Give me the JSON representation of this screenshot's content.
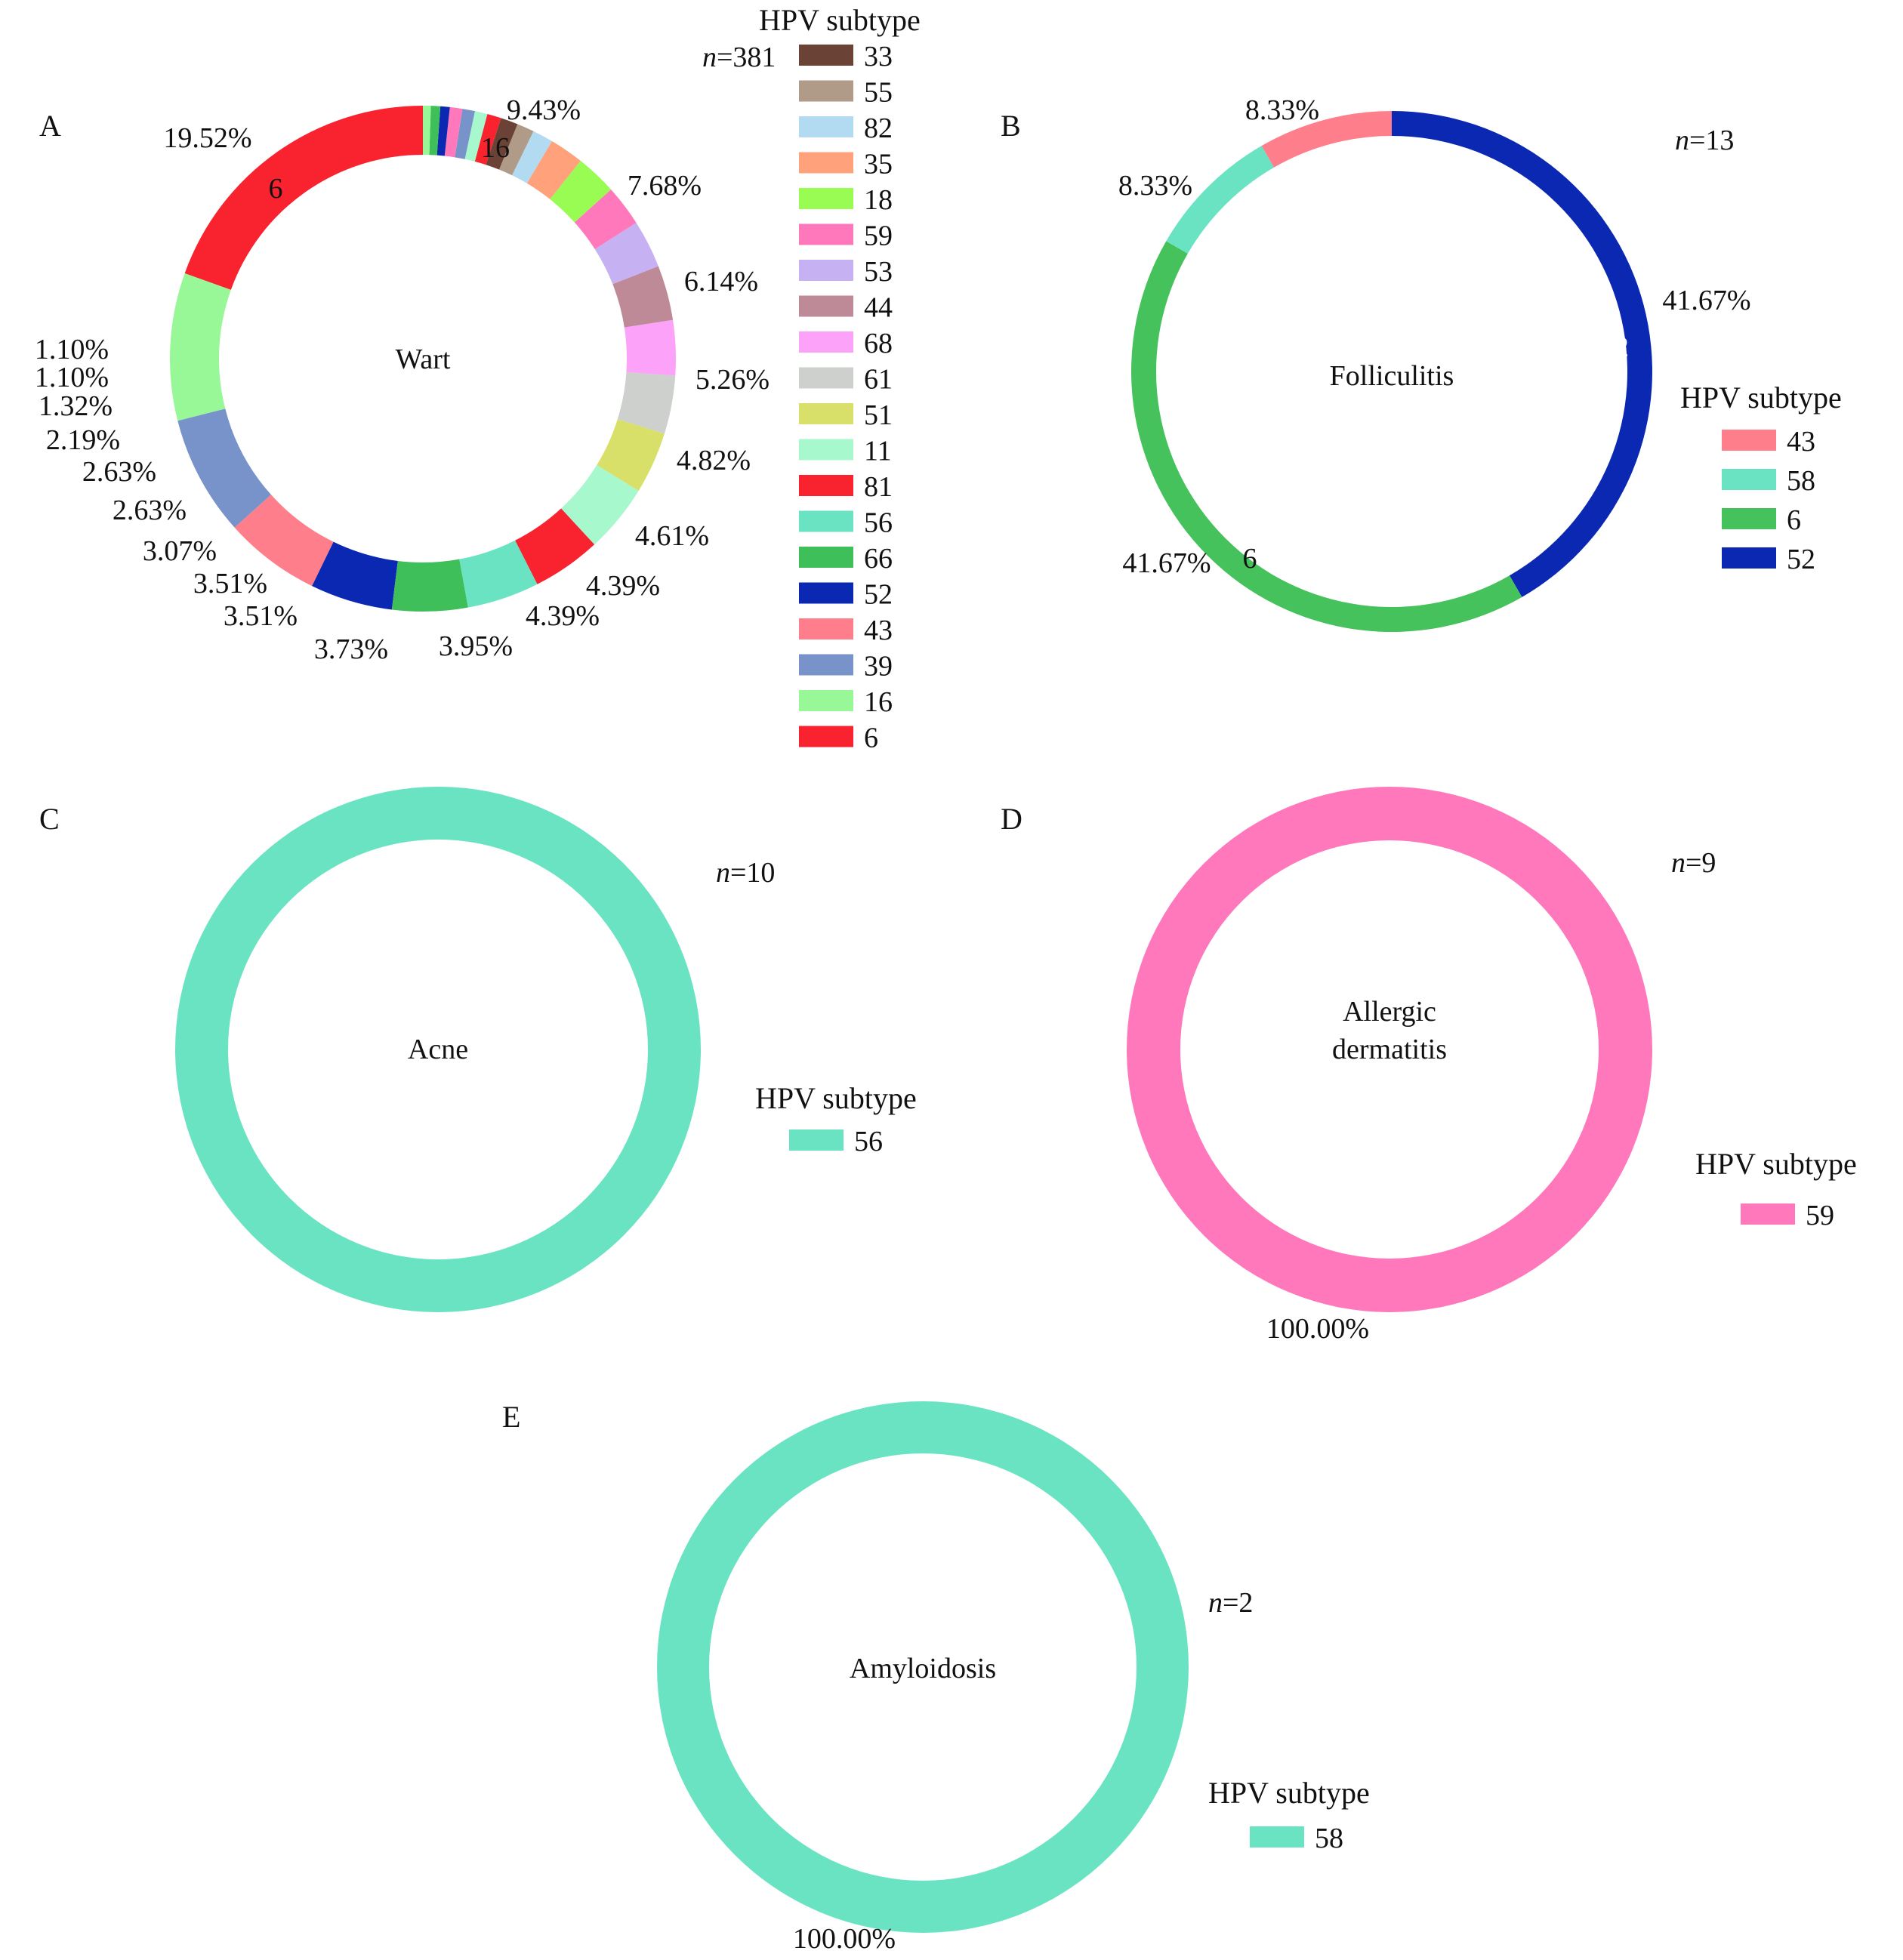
{
  "colors": {
    "6": "#F8232F",
    "16": "#98F898",
    "39": "#7893CA",
    "43": "#FF7E8C",
    "52": "#0A28B2",
    "66": "#3FBF5A",
    "56": "#69E3C2",
    "81": "#F8232F",
    "11": "#A8F8CE",
    "51": "#D8E06A",
    "61": "#CDD0CC",
    "68": "#FCA2F9",
    "44": "#BF8A98",
    "53": "#C6B1F2",
    "59": "#FF78BC",
    "18": "#99FC52",
    "35": "#FFA27C",
    "82": "#B2DBF2",
    "55": "#B09A88",
    "33": "#6A4236",
    "58": "#69E3C2",
    "6b": "#46C25C"
  },
  "chart_data": [
    {
      "panel": "A",
      "type": "pie",
      "center_label": "Wart",
      "n_label": "n",
      "n_value": "=381",
      "legend_title": "HPV subtype",
      "legend": [
        "33",
        "55",
        "82",
        "35",
        "18",
        "59",
        "53",
        "44",
        "68",
        "61",
        "51",
        "11",
        "81",
        "56",
        "66",
        "52",
        "43",
        "39",
        "16",
        "6"
      ],
      "slices": [
        {
          "subtype": "6",
          "value": 19.52,
          "label": "19.52%",
          "inner_label": "6"
        },
        {
          "subtype": "16",
          "value": 9.43,
          "label": "9.43%",
          "inner_label": "16"
        },
        {
          "subtype": "39",
          "value": 7.68,
          "label": "7.68%"
        },
        {
          "subtype": "43",
          "value": 6.14,
          "label": "6.14%"
        },
        {
          "subtype": "52",
          "value": 5.26,
          "label": "5.26%"
        },
        {
          "subtype": "66",
          "value": 4.82,
          "label": "4.82%"
        },
        {
          "subtype": "56",
          "value": 4.61,
          "label": "4.61%"
        },
        {
          "subtype": "81",
          "value": 4.39,
          "label": "4.39%"
        },
        {
          "subtype": "11",
          "value": 4.39,
          "label": "4.39%"
        },
        {
          "subtype": "51",
          "value": 3.95,
          "label": "3.95%"
        },
        {
          "subtype": "61",
          "value": 3.73,
          "label": "3.73%"
        },
        {
          "subtype": "68",
          "value": 3.51,
          "label": "3.51%"
        },
        {
          "subtype": "44",
          "value": 3.51,
          "label": "3.51%"
        },
        {
          "subtype": "53",
          "value": 3.07,
          "label": "3.07%"
        },
        {
          "subtype": "59",
          "value": 2.63,
          "label": "2.63%"
        },
        {
          "subtype": "18",
          "value": 2.63,
          "label": "2.63%"
        },
        {
          "subtype": "35",
          "value": 2.19,
          "label": "2.19%"
        },
        {
          "subtype": "82",
          "value": 1.32,
          "label": "1.32%"
        },
        {
          "subtype": "55",
          "value": 1.1,
          "label": "1.10%"
        },
        {
          "subtype": "33",
          "value": 1.1,
          "label": "1.10%"
        },
        {
          "subtype": "81",
          "value": 0.9
        },
        {
          "subtype": "11",
          "value": 0.8
        },
        {
          "subtype": "39",
          "value": 0.8
        },
        {
          "subtype": "59",
          "value": 0.8
        },
        {
          "subtype": "52",
          "value": 0.6
        },
        {
          "subtype": "66",
          "value": 0.6
        },
        {
          "subtype": "16",
          "value": 0.5
        }
      ]
    },
    {
      "panel": "B",
      "type": "pie",
      "center_label": "Folliculitis",
      "n_label": "n",
      "n_value": "=13",
      "legend_title": "HPV subtype",
      "legend": [
        "43",
        "58",
        "6",
        "52"
      ],
      "slices": [
        {
          "subtype": "52",
          "value": 41.67,
          "label": "41.67%",
          "inner_label": "52"
        },
        {
          "subtype": "6",
          "value": 41.67,
          "label": "41.67%",
          "inner_label": "6"
        },
        {
          "subtype": "58",
          "value": 8.33,
          "label": "8.33%"
        },
        {
          "subtype": "43",
          "value": 8.33,
          "label": "8.33%"
        }
      ]
    },
    {
      "panel": "C",
      "type": "pie",
      "center_label": "Acne",
      "n_label": "n",
      "n_value": "=10",
      "legend_title": "HPV subtype",
      "legend": [
        "56"
      ],
      "slices": [
        {
          "subtype": "56",
          "value": 100
        }
      ]
    },
    {
      "panel": "D",
      "type": "pie",
      "center_label": "Allergic\ndermatitis",
      "n_label": "n",
      "n_value": "=9",
      "legend_title": "HPV subtype",
      "legend": [
        "59"
      ],
      "slices": [
        {
          "subtype": "59",
          "value": 100,
          "label": "100.00%"
        }
      ]
    },
    {
      "panel": "E",
      "type": "pie",
      "center_label": "Amyloidosis",
      "n_label": "n",
      "n_value": "=2",
      "legend_title": "HPV subtype",
      "legend": [
        "58"
      ],
      "slices": [
        {
          "subtype": "58",
          "value": 100,
          "label": "100.00%"
        }
      ]
    }
  ]
}
